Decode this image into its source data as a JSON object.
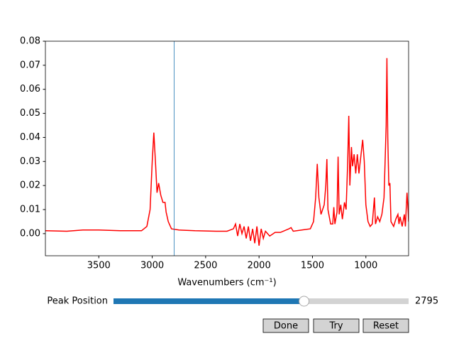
{
  "chart_data": {
    "type": "line",
    "xlabel": "Wavenumbers (cm⁻¹)",
    "x": [
      4000,
      3800,
      3650,
      3500,
      3300,
      3100,
      3050,
      3020,
      3000,
      2985,
      2970,
      2955,
      2940,
      2920,
      2900,
      2880,
      2870,
      2850,
      2820,
      2750,
      2600,
      2400,
      2300,
      2240,
      2220,
      2200,
      2180,
      2160,
      2140,
      2120,
      2100,
      2080,
      2060,
      2040,
      2020,
      2000,
      1980,
      1960,
      1940,
      1900,
      1850,
      1800,
      1720,
      1700,
      1680,
      1600,
      1520,
      1490,
      1470,
      1455,
      1440,
      1420,
      1390,
      1375,
      1365,
      1355,
      1330,
      1310,
      1300,
      1290,
      1270,
      1260,
      1250,
      1235,
      1220,
      1200,
      1185,
      1170,
      1160,
      1150,
      1135,
      1125,
      1110,
      1095,
      1080,
      1065,
      1040,
      1030,
      1015,
      1000,
      980,
      960,
      940,
      920,
      910,
      890,
      870,
      850,
      830,
      810,
      803,
      795,
      785,
      775,
      765,
      740,
      720,
      700,
      690,
      680,
      660,
      640,
      630,
      615,
      605,
      600
    ],
    "values": [
      0.0012,
      0.001,
      0.0015,
      0.0015,
      0.0012,
      0.0012,
      0.003,
      0.01,
      0.03,
      0.042,
      0.03,
      0.017,
      0.021,
      0.016,
      0.013,
      0.013,
      0.009,
      0.005,
      0.002,
      0.0015,
      0.0012,
      0.001,
      0.001,
      0.002,
      0.004,
      -0.001,
      0.004,
      0.0,
      0.003,
      -0.002,
      0.003,
      -0.003,
      0.002,
      -0.004,
      0.003,
      -0.005,
      0.002,
      -0.002,
      0.001,
      -0.001,
      0.0005,
      0.0005,
      0.002,
      0.0025,
      0.001,
      0.0015,
      0.002,
      0.005,
      0.015,
      0.029,
      0.015,
      0.008,
      0.012,
      0.02,
      0.031,
      0.01,
      0.004,
      0.004,
      0.011,
      0.004,
      0.009,
      0.032,
      0.008,
      0.012,
      0.006,
      0.013,
      0.01,
      0.03,
      0.049,
      0.02,
      0.036,
      0.028,
      0.033,
      0.025,
      0.033,
      0.025,
      0.035,
      0.039,
      0.03,
      0.012,
      0.005,
      0.003,
      0.004,
      0.015,
      0.004,
      0.007,
      0.005,
      0.008,
      0.015,
      0.045,
      0.073,
      0.04,
      0.02,
      0.021,
      0.005,
      0.003,
      0.006,
      0.008,
      0.004,
      0.007,
      0.003,
      0.008,
      0.003,
      0.017,
      0.01,
      0.005
    ],
    "color": "#ff0000",
    "xlim": [
      4000,
      600
    ],
    "xticks": [
      3500,
      3000,
      2500,
      2000,
      1500,
      1000
    ],
    "ylim": [
      -0.0092,
      0.08
    ],
    "yticks": [
      {
        "value": 0,
        "label": "0.00"
      },
      0.01,
      0.02,
      0.03,
      0.04,
      0.05,
      0.06,
      0.07,
      0.08
    ]
  },
  "slider": {
    "label": "Peak Position",
    "value": 2795,
    "range": [
      600,
      4000
    ],
    "color": "#1f77b4"
  },
  "buttons": [
    "Done",
    "Try",
    "Reset"
  ]
}
